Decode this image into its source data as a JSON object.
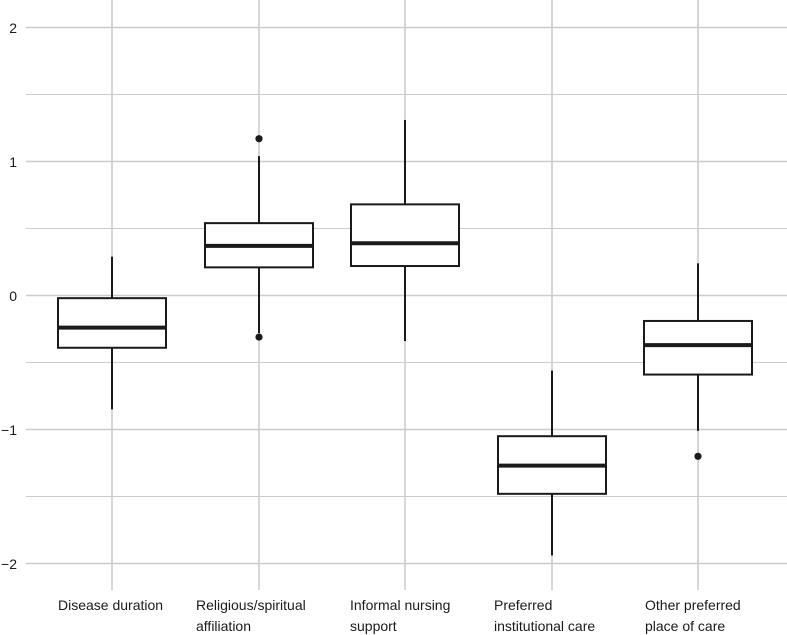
{
  "chart_data": {
    "type": "boxplot",
    "title": "",
    "xlabel": "",
    "ylabel": "",
    "ylim": [
      -2.05,
      2.1
    ],
    "yticks": [
      2,
      1,
      0,
      -1,
      -2
    ],
    "ytick_labels": [
      "2",
      "1",
      "0",
      "−1",
      "−2"
    ],
    "grid": true,
    "colors": {
      "box": "#1a1a1a",
      "grid": "#cccccc",
      "background": "#ffffff"
    },
    "categories": [
      {
        "label_lines": [
          "Disease duration"
        ],
        "min": -0.85,
        "q1": -0.39,
        "median": -0.24,
        "q3": -0.02,
        "max": 0.29,
        "outliers": []
      },
      {
        "label_lines": [
          "Religious/spiritual",
          "affiliation"
        ],
        "min": -0.28,
        "q1": 0.21,
        "median": 0.37,
        "q3": 0.54,
        "max": 1.04,
        "outliers": [
          1.17,
          -0.31
        ]
      },
      {
        "label_lines": [
          "Informal nursing",
          "support"
        ],
        "min": -0.34,
        "q1": 0.22,
        "median": 0.39,
        "q3": 0.68,
        "max": 1.31,
        "outliers": []
      },
      {
        "label_lines": [
          "Preferred",
          "institutional care"
        ],
        "min": -1.94,
        "q1": -1.48,
        "median": -1.27,
        "q3": -1.05,
        "max": -0.56,
        "outliers": []
      },
      {
        "label_lines": [
          "Other preferred",
          "place of care"
        ],
        "min": -1.01,
        "q1": -0.59,
        "median": -0.37,
        "q3": -0.19,
        "max": 0.24,
        "outliers": [
          -1.2
        ]
      }
    ]
  }
}
